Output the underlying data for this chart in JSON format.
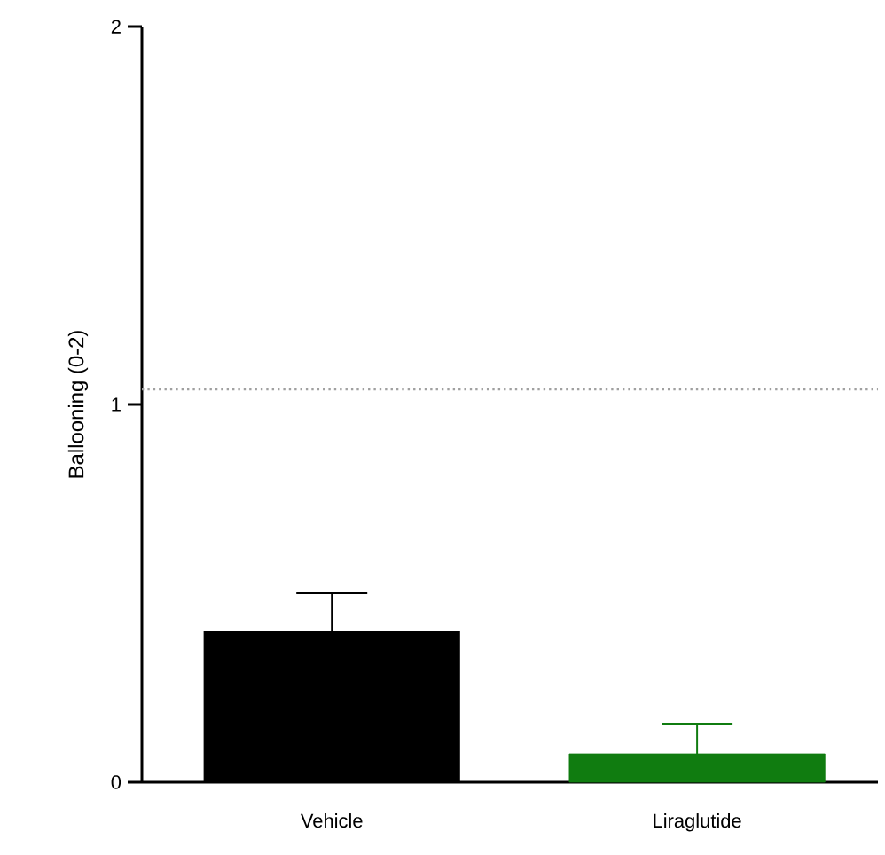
{
  "chart_data": {
    "type": "bar",
    "ylabel": "Ballooning (0-2)",
    "categories": [
      "Vehicle",
      "Liraglutide"
    ],
    "values": [
      0.4,
      0.075
    ],
    "colors": [
      "#000000",
      "#107c10"
    ],
    "errors": [
      [
        0.4,
        0.5
      ],
      [
        0.075,
        0.155
      ]
    ],
    "ylim": [
      0,
      2
    ],
    "yticks": [
      0,
      1,
      2
    ],
    "ref_lines": [
      {
        "axis": "y",
        "value": 1.04,
        "color": "#a0a0a0",
        "line_style": "dotted"
      }
    ],
    "grid": false
  }
}
